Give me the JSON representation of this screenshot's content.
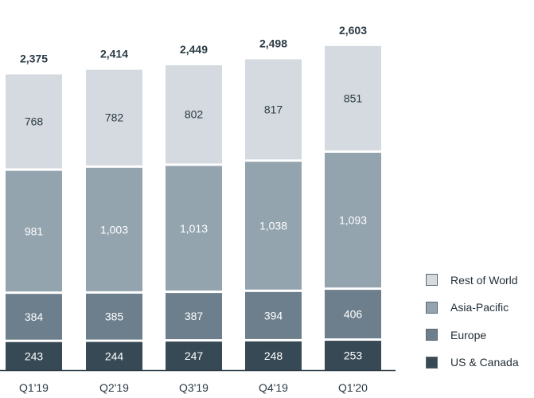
{
  "chart_data": {
    "type": "bar",
    "stacked": true,
    "categories": [
      "Q1'19",
      "Q2'19",
      "Q3'19",
      "Q4'19",
      "Q1'20"
    ],
    "series": [
      {
        "name": "US & Canada",
        "values": [
          243,
          244,
          247,
          248,
          253
        ],
        "labels": [
          "243",
          "244",
          "247",
          "248",
          "253"
        ],
        "color": "#374955",
        "label_color": "#ffffff"
      },
      {
        "name": "Europe",
        "values": [
          384,
          385,
          387,
          394,
          406
        ],
        "labels": [
          "384",
          "385",
          "387",
          "394",
          "406"
        ],
        "color": "#6d7f8c",
        "label_color": "#ffffff"
      },
      {
        "name": "Asia-Pacific",
        "values": [
          981,
          1003,
          1013,
          1038,
          1093
        ],
        "labels": [
          "981",
          "1,003",
          "1,013",
          "1,038",
          "1,093"
        ],
        "color": "#93a4af",
        "label_color": "#ffffff"
      },
      {
        "name": "Rest of World",
        "values": [
          768,
          782,
          802,
          817,
          851
        ],
        "labels": [
          "768",
          "782",
          "802",
          "817",
          "851"
        ],
        "color": "#d4dadf",
        "label_color": "#2b3a44"
      }
    ],
    "totals": [
      2375,
      2414,
      2449,
      2498,
      2603
    ],
    "total_labels": [
      "2,375",
      "2,414",
      "2,449",
      "2,498",
      "2,603"
    ],
    "legend_order": [
      "Rest of World",
      "Asia-Pacific",
      "Europe",
      "US & Canada"
    ],
    "legend_position": "bottom-right",
    "grid": false
  }
}
